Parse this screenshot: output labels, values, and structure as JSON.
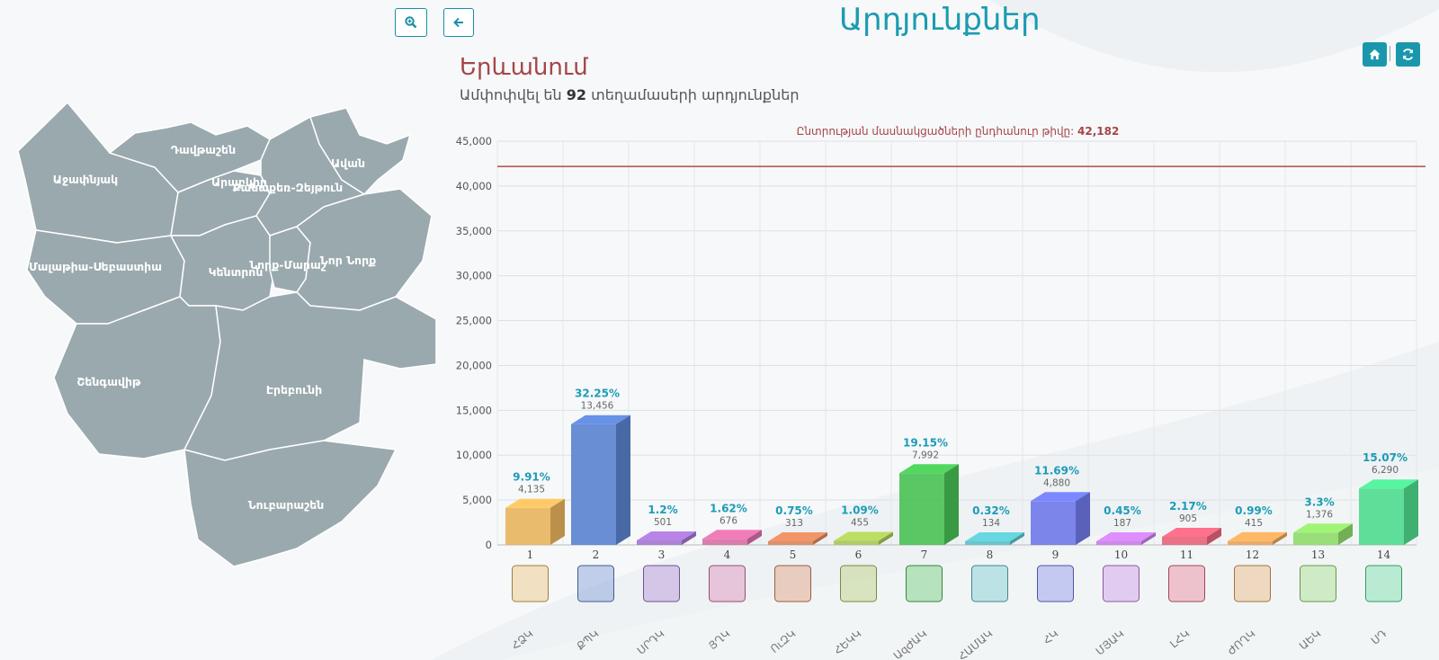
{
  "header": {
    "title": "Արդյունքներ",
    "zoom_icon": "zoom-in-icon",
    "back_icon": "arrow-left-icon",
    "home_icon": "home-icon",
    "refresh_icon": "refresh-icon"
  },
  "region": {
    "name": "Երևանում",
    "subtitle_prefix": "Ամփոփվել են",
    "subtitle_count": "92",
    "subtitle_suffix": "տեղամասերի արդյունքներ"
  },
  "map": {
    "districts": [
      "Դավթաշեն",
      "Աջափնյակ",
      "Արաբկիր",
      "Քանաքեռ-Զեյթուն",
      "Ավան",
      "Մալաթիա-Սեբաստիա",
      "Կենտրոն",
      "Նորք-Մարաշ",
      "Նոր Նորք",
      "Շենգավիթ",
      "Էրեբունի",
      "Նուբարաշեն"
    ]
  },
  "colors": {
    "accent": "#1b9bb0",
    "brand_red": "#a54548",
    "map_fill": "#9aa9ae",
    "reference_line": "#b44a4a"
  },
  "chart_data": {
    "type": "bar",
    "categories": [
      "1",
      "2",
      "3",
      "4",
      "5",
      "6",
      "7",
      "8",
      "9",
      "10",
      "11",
      "12",
      "13",
      "14"
    ],
    "party_abbr": [
      "ՀՁԿ",
      "ՔՊԿ",
      "ՍՐԴԿ",
      "ՅՂԿ",
      "ՈւԶԿ",
      "ՀԵԿԿ",
      "ԱզԺԱԿ",
      "ՀԱՄԱԿ",
      "ՀԿ",
      "ՄՅԱԿ",
      "ԼՀԿ",
      "ԺՈՂԿ",
      "ԱԵԿ",
      "ՍԴ"
    ],
    "values": [
      4135,
      13456,
      501,
      676,
      313,
      455,
      7992,
      134,
      4880,
      187,
      905,
      415,
      1376,
      6290
    ],
    "value_labels": [
      "4,135",
      "13,456",
      "501",
      "676",
      "313",
      "455",
      "7,992",
      "134",
      "4,880",
      "187",
      "905",
      "415",
      "1,376",
      "6,290"
    ],
    "percentages": [
      "9.91%",
      "32.25%",
      "1.2%",
      "1.62%",
      "0.75%",
      "1.09%",
      "19.15%",
      "0.32%",
      "11.69%",
      "0.45%",
      "2.17%",
      "0.99%",
      "3.3%",
      "15.07%"
    ],
    "bar_colors": [
      "#e8b45c",
      "#5b82cf",
      "#a476cf",
      "#d86fa6",
      "#d9865c",
      "#a8c65a",
      "#49c154",
      "#5cc0c8",
      "#6f79e8",
      "#c67fe6",
      "#e7657d",
      "#e8a45a",
      "#8fdb6a",
      "#4fdb8f"
    ],
    "ylim": [
      0,
      45000
    ],
    "yticks": [
      0,
      5000,
      10000,
      15000,
      20000,
      25000,
      30000,
      35000,
      40000,
      45000
    ],
    "ytick_labels": [
      "0",
      "5,000",
      "10,000",
      "15,000",
      "20,000",
      "25,000",
      "30,000",
      "35,000",
      "40,000",
      "45,000"
    ],
    "reference": {
      "label": "Ընտրության մասնակցածների ընդհանուր թիվը:",
      "value": 42182,
      "value_label": "42,182"
    },
    "grid": true
  }
}
